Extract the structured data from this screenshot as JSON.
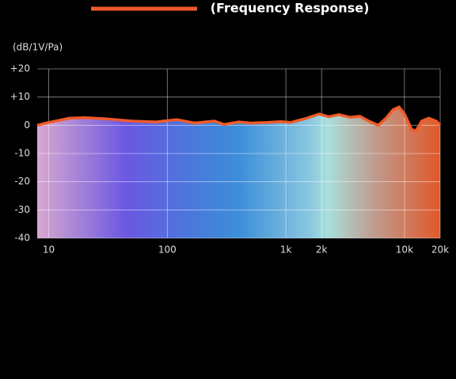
{
  "chart_data": {
    "type": "area",
    "y_label": "(dB/1V/Pa)",
    "series": [
      {
        "name": "(Frequency Response)",
        "color": "#f05a28",
        "x": [
          8,
          10,
          15,
          20,
          30,
          50,
          80,
          120,
          170,
          250,
          300,
          400,
          500,
          700,
          900,
          1100,
          1500,
          1900,
          2300,
          2800,
          3500,
          4200,
          5000,
          6000,
          7000,
          8000,
          9000,
          10000,
          11500,
          12500,
          14000,
          16000,
          18500,
          20000
        ],
        "values": [
          0,
          1,
          2.5,
          2.7,
          2.3,
          1.5,
          1.2,
          2,
          0.8,
          1.5,
          0.3,
          1.2,
          0.8,
          1,
          1.3,
          1,
          2.5,
          4,
          3,
          3.8,
          2.8,
          3.2,
          1.5,
          0,
          2.5,
          5.5,
          6.5,
          4,
          -1.5,
          -2,
          1.5,
          2.5,
          1.5,
          0
        ]
      }
    ],
    "x_log": true,
    "xlim": [
      8,
      20000
    ],
    "xticks": [
      10,
      100,
      {
        "value": 1000,
        "label": "1k"
      },
      {
        "value": 2000,
        "label": "2k"
      },
      {
        "value": 10000,
        "label": "10k"
      },
      {
        "value": 20000,
        "label": "20k"
      }
    ],
    "ylim": [
      -40,
      20
    ],
    "yticks": [
      {
        "value": 20,
        "label": "+20"
      },
      {
        "value": 10,
        "label": "+10"
      },
      0,
      -10,
      -20,
      -30,
      -40
    ],
    "grid": true
  }
}
